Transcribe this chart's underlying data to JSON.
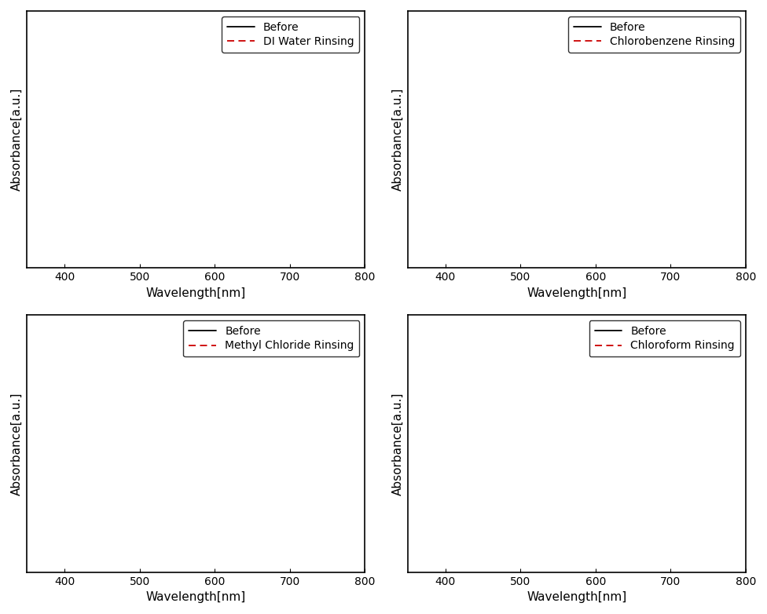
{
  "subplots": [
    {
      "legend_label": "DI Water Rinsing"
    },
    {
      "legend_label": "Chlorobenzene Rinsing"
    },
    {
      "legend_label": "Methyl Chloride Rinsing"
    },
    {
      "legend_label": "Chloroform Rinsing"
    }
  ],
  "xlabel": "Wavelength[nm]",
  "ylabel": "Absorbance[a.u.]",
  "xlim": [
    350,
    800
  ],
  "xticks": [
    400,
    500,
    600,
    700,
    800
  ],
  "before_color": "#000000",
  "after_color": "#cc0000",
  "line_width": 1.3,
  "dashed_pattern": [
    5,
    3
  ],
  "ylim": [
    0.0,
    1.0
  ],
  "background_color": "#ffffff",
  "legend_fontsize": 10,
  "tick_labelsize": 10,
  "axis_labelsize": 11
}
